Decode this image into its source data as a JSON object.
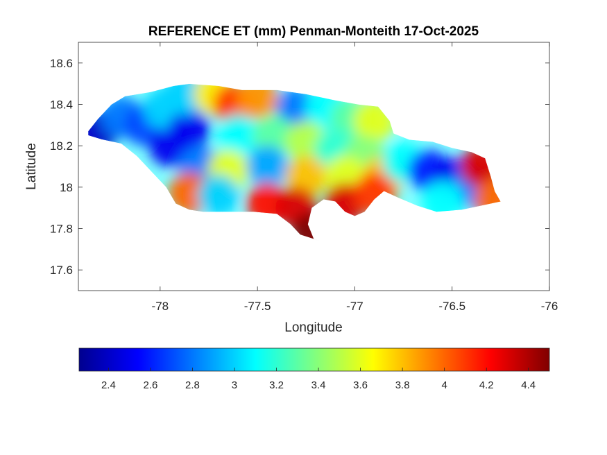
{
  "chart_data": {
    "type": "heatmap",
    "title": "REFERENCE ET (mm) Penman-Monteith 17-Oct-2025",
    "xlabel": "Longitude",
    "ylabel": "Latitude",
    "xlim": [
      -78.42,
      -76.0
    ],
    "ylim": [
      17.5,
      18.7
    ],
    "x_ticks": [
      -78,
      -77.5,
      -77,
      -76.5,
      -76
    ],
    "x_tick_labels": [
      "-78",
      "-77.5",
      "-77",
      "-76.5",
      "-76"
    ],
    "y_ticks": [
      17.6,
      17.8,
      18,
      18.2,
      18.4,
      18.6
    ],
    "y_tick_labels": [
      "17.6",
      "17.8",
      "18",
      "18.2",
      "18.4",
      "18.6"
    ],
    "grid": false,
    "colormap": "jet",
    "colorbar": {
      "orientation": "horizontal",
      "location": "below",
      "range": [
        2.26,
        4.5
      ],
      "ticks": [
        2.4,
        2.6,
        2.8,
        3,
        3.2,
        3.4,
        3.6,
        3.8,
        4,
        4.2,
        4.4
      ],
      "tick_labels": [
        "2.4",
        "2.6",
        "2.8",
        "3",
        "3.2",
        "3.4",
        "3.6",
        "3.8",
        "4",
        "4.2",
        "4.4"
      ]
    },
    "colors": [
      "#00008f",
      "#0000ff",
      "#0080ff",
      "#00ffff",
      "#80ff80",
      "#ffff00",
      "#ff8000",
      "#ff0000",
      "#800000"
    ],
    "island_outline": [
      [
        -78.37,
        18.27
      ],
      [
        -78.32,
        18.33
      ],
      [
        -78.25,
        18.4
      ],
      [
        -78.18,
        18.44
      ],
      [
        -78.05,
        18.46
      ],
      [
        -77.93,
        18.49
      ],
      [
        -77.85,
        18.5
      ],
      [
        -77.7,
        18.49
      ],
      [
        -77.58,
        18.47
      ],
      [
        -77.4,
        18.47
      ],
      [
        -77.25,
        18.45
      ],
      [
        -77.1,
        18.42
      ],
      [
        -76.98,
        18.4
      ],
      [
        -76.88,
        18.39
      ],
      [
        -76.82,
        18.32
      ],
      [
        -76.8,
        18.26
      ],
      [
        -76.72,
        18.23
      ],
      [
        -76.6,
        18.22
      ],
      [
        -76.5,
        18.19
      ],
      [
        -76.4,
        18.17
      ],
      [
        -76.33,
        18.14
      ],
      [
        -76.3,
        18.05
      ],
      [
        -76.28,
        17.98
      ],
      [
        -76.25,
        17.93
      ],
      [
        -76.35,
        17.91
      ],
      [
        -76.45,
        17.89
      ],
      [
        -76.58,
        17.88
      ],
      [
        -76.68,
        17.91
      ],
      [
        -76.78,
        17.95
      ],
      [
        -76.85,
        17.98
      ],
      [
        -76.9,
        17.94
      ],
      [
        -76.95,
        17.88
      ],
      [
        -77.0,
        17.86
      ],
      [
        -77.05,
        17.88
      ],
      [
        -77.1,
        17.93
      ],
      [
        -77.16,
        17.94
      ],
      [
        -77.22,
        17.9
      ],
      [
        -77.24,
        17.82
      ],
      [
        -77.21,
        17.75
      ],
      [
        -77.18,
        17.74
      ],
      [
        -77.28,
        17.77
      ],
      [
        -77.33,
        17.82
      ],
      [
        -77.4,
        17.87
      ],
      [
        -77.52,
        17.88
      ],
      [
        -77.68,
        17.88
      ],
      [
        -77.78,
        17.88
      ],
      [
        -77.85,
        17.89
      ],
      [
        -77.92,
        17.92
      ],
      [
        -77.97,
        18.0
      ],
      [
        -78.05,
        18.08
      ],
      [
        -78.12,
        18.15
      ],
      [
        -78.2,
        18.21
      ],
      [
        -78.3,
        18.23
      ],
      [
        -78.37,
        18.25
      ]
    ],
    "values": [
      {
        "x": -78.32,
        "y": 18.27,
        "v": 2.4
      },
      {
        "x": -78.2,
        "y": 18.34,
        "v": 2.8
      },
      {
        "x": -78.08,
        "y": 18.3,
        "v": 2.7
      },
      {
        "x": -77.95,
        "y": 18.2,
        "v": 2.5
      },
      {
        "x": -77.98,
        "y": 18.38,
        "v": 3.0
      },
      {
        "x": -77.85,
        "y": 18.28,
        "v": 2.5
      },
      {
        "x": -77.88,
        "y": 18.45,
        "v": 3.0
      },
      {
        "x": -77.72,
        "y": 18.45,
        "v": 3.7
      },
      {
        "x": -77.62,
        "y": 18.4,
        "v": 4.1
      },
      {
        "x": -77.5,
        "y": 18.43,
        "v": 3.9
      },
      {
        "x": -77.3,
        "y": 18.38,
        "v": 2.8
      },
      {
        "x": -77.15,
        "y": 18.38,
        "v": 3.1
      },
      {
        "x": -77.02,
        "y": 18.33,
        "v": 3.3
      },
      {
        "x": -76.9,
        "y": 18.32,
        "v": 3.6
      },
      {
        "x": -77.6,
        "y": 18.25,
        "v": 3.1
      },
      {
        "x": -77.42,
        "y": 18.25,
        "v": 3.3
      },
      {
        "x": -77.25,
        "y": 18.22,
        "v": 3.5
      },
      {
        "x": -77.1,
        "y": 18.18,
        "v": 3.2
      },
      {
        "x": -76.95,
        "y": 18.15,
        "v": 3.4
      },
      {
        "x": -77.8,
        "y": 18.1,
        "v": 2.8
      },
      {
        "x": -77.65,
        "y": 18.08,
        "v": 3.6
      },
      {
        "x": -77.45,
        "y": 18.1,
        "v": 2.9
      },
      {
        "x": -77.25,
        "y": 18.05,
        "v": 3.8
      },
      {
        "x": -77.05,
        "y": 18.05,
        "v": 3.6
      },
      {
        "x": -76.85,
        "y": 18.05,
        "v": 3.8
      },
      {
        "x": -77.85,
        "y": 17.97,
        "v": 4.0
      },
      {
        "x": -77.7,
        "y": 17.96,
        "v": 3.0
      },
      {
        "x": -77.45,
        "y": 17.92,
        "v": 4.2
      },
      {
        "x": -77.3,
        "y": 17.9,
        "v": 4.3
      },
      {
        "x": -77.22,
        "y": 17.78,
        "v": 4.5
      },
      {
        "x": -77.05,
        "y": 17.92,
        "v": 4.3
      },
      {
        "x": -76.9,
        "y": 17.97,
        "v": 4.1
      },
      {
        "x": -76.75,
        "y": 18.12,
        "v": 3.1
      },
      {
        "x": -76.62,
        "y": 18.08,
        "v": 2.6
      },
      {
        "x": -76.5,
        "y": 18.04,
        "v": 2.5
      },
      {
        "x": -76.4,
        "y": 18.0,
        "v": 2.8
      },
      {
        "x": -76.35,
        "y": 18.1,
        "v": 4.3
      },
      {
        "x": -76.55,
        "y": 17.93,
        "v": 3.1
      },
      {
        "x": -76.28,
        "y": 17.94,
        "v": 4.0
      }
    ]
  }
}
